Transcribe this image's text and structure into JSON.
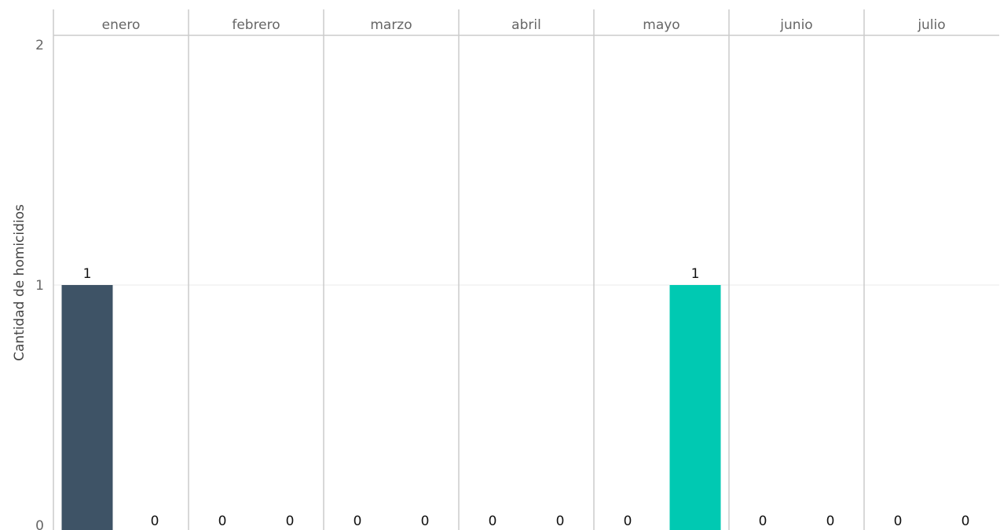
{
  "chart_data": {
    "type": "bar",
    "ylabel": "Cantidad de homicidios",
    "xlabel": "",
    "ylim": [
      0,
      2
    ],
    "yticks": [
      "0",
      "1",
      "2"
    ],
    "grid": true,
    "facets": [
      {
        "label": "enero",
        "values": [
          1,
          0
        ],
        "colors": [
          "#3e5366",
          "#3e5366"
        ]
      },
      {
        "label": "febrero",
        "values": [
          0,
          0
        ],
        "colors": [
          "#3e5366",
          "#3e5366"
        ]
      },
      {
        "label": "marzo",
        "values": [
          0,
          0
        ],
        "colors": [
          "#3e5366",
          "#3e5366"
        ]
      },
      {
        "label": "abril",
        "values": [
          0,
          0
        ],
        "colors": [
          "#3e5366",
          "#3e5366"
        ]
      },
      {
        "label": "mayo",
        "values": [
          0,
          1
        ],
        "colors": [
          "#3e5366",
          "#00c9b2"
        ]
      },
      {
        "label": "junio",
        "values": [
          0,
          0
        ],
        "colors": [
          "#3e5366",
          "#3e5366"
        ]
      },
      {
        "label": "julio",
        "values": [
          0,
          0
        ],
        "colors": [
          "#3e5366",
          "#3e5366"
        ]
      }
    ],
    "data_labels": [
      [
        "1",
        "0"
      ],
      [
        "0",
        "0"
      ],
      [
        "0",
        "0"
      ],
      [
        "0",
        "0"
      ],
      [
        "0",
        "1"
      ],
      [
        "0",
        "0"
      ],
      [
        "0",
        "0"
      ]
    ]
  },
  "colors": {
    "bar_dark": "#3e5366",
    "bar_teal": "#00c9b2",
    "divider": "#cccccc",
    "gridline": "#ebebeb"
  }
}
